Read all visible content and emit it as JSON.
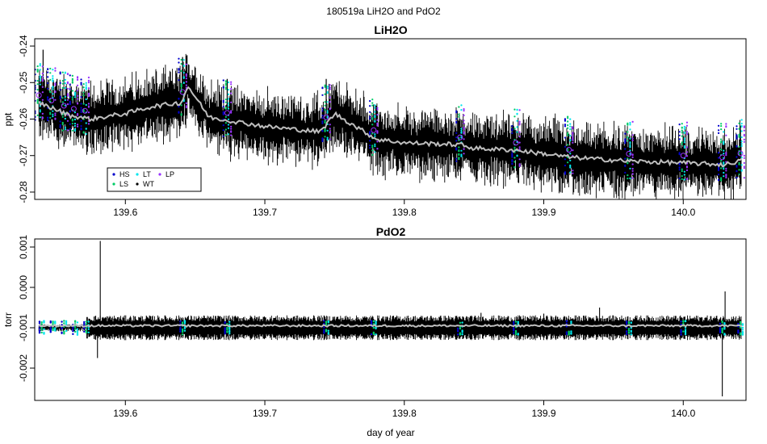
{
  "figure": {
    "suptitle": "180519a   LiH2O and PdO2",
    "shared_xlabel": "day of year"
  },
  "chart_data": [
    {
      "type": "line",
      "title": "LiH2O",
      "xlabel": "",
      "ylabel": "ppt",
      "xlim": [
        139.535,
        140.045
      ],
      "ylim": [
        -0.282,
        -0.238
      ],
      "xticks": [
        139.6,
        139.7,
        139.8,
        139.9,
        140.0
      ],
      "xtick_labels": [
        "139.6",
        "139.7",
        "139.8",
        "139.9",
        "140.0"
      ],
      "yticks": [
        -0.24,
        -0.25,
        -0.26,
        -0.27,
        -0.28
      ],
      "ytick_labels": [
        "-0.24",
        "-0.25",
        "-0.26",
        "-0.27",
        "-0.28"
      ],
      "raw_noise": 0.0065,
      "colors": {
        "raw": "#000000",
        "smooth": "#bebebe",
        "HS": "#0000cc",
        "LS": "#00cc66",
        "LT": "#00e5ee",
        "WT": "#000000",
        "LP": "#9933ff"
      },
      "smooth_trend": {
        "x": [
          139.535,
          139.56,
          139.575,
          139.6,
          139.62,
          139.64,
          139.645,
          139.66,
          139.7,
          139.74,
          139.75,
          139.78,
          139.8,
          139.84,
          139.85,
          139.88,
          139.92,
          139.96,
          140.0,
          140.03,
          140.045
        ],
        "y": [
          -0.255,
          -0.259,
          -0.26,
          -0.2585,
          -0.2565,
          -0.2555,
          -0.251,
          -0.2595,
          -0.262,
          -0.2635,
          -0.2585,
          -0.2655,
          -0.2665,
          -0.267,
          -0.268,
          -0.2685,
          -0.2705,
          -0.2715,
          -0.272,
          -0.2725,
          -0.271
        ]
      },
      "spikes": [
        {
          "x": 139.541,
          "y": -0.241
        },
        {
          "x": 139.551,
          "y": -0.249
        },
        {
          "x": 139.565,
          "y": -0.251
        },
        {
          "x": 139.641,
          "y": -0.243
        },
        {
          "x": 139.673,
          "y": -0.249
        },
        {
          "x": 139.744,
          "y": -0.249
        },
        {
          "x": 139.778,
          "y": -0.256
        },
        {
          "x": 139.84,
          "y": -0.26
        },
        {
          "x": 139.88,
          "y": -0.263
        },
        {
          "x": 139.918,
          "y": -0.264
        },
        {
          "x": 139.961,
          "y": -0.265
        },
        {
          "x": 140.0,
          "y": -0.266
        },
        {
          "x": 140.041,
          "y": -0.264
        }
      ],
      "calibration_bursts": [
        139.538,
        139.547,
        139.556,
        139.563,
        139.571,
        139.641,
        139.673,
        139.744,
        139.778,
        139.84,
        139.88,
        139.918,
        139.961,
        140.0,
        140.028,
        140.041
      ],
      "legend": {
        "placement": "bottom-left",
        "entries": [
          {
            "label": "HS",
            "color": "#0000cc"
          },
          {
            "label": "LT",
            "color": "#00e5ee"
          },
          {
            "label": "LP",
            "color": "#9933ff"
          },
          {
            "label": "LS",
            "color": "#00cc66"
          },
          {
            "label": "WT",
            "color": "#000000"
          }
        ]
      }
    },
    {
      "type": "line",
      "title": "PdO2",
      "xlabel": "day of year",
      "ylabel": "torr",
      "xlim": [
        139.535,
        140.045
      ],
      "ylim": [
        -0.0028,
        0.0012
      ],
      "xticks": [
        139.6,
        139.7,
        139.8,
        139.9,
        140.0
      ],
      "xtick_labels": [
        "139.6",
        "139.7",
        "139.8",
        "139.9",
        "140.0"
      ],
      "yticks": [
        0.001,
        0.0,
        -0.001,
        -0.002
      ],
      "ytick_labels": [
        "0.001",
        "0.000",
        "-0.001",
        "-0.002"
      ],
      "baseline": -0.001,
      "band_halfwidth": 0.00022,
      "colors": {
        "raw": "#000000",
        "smooth": "#bebebe",
        "HS": "#0000cc",
        "LS": "#00cc66",
        "LT": "#00e5ee"
      },
      "spikes": [
        {
          "x": 139.582,
          "y": 0.00115
        },
        {
          "x": 139.58,
          "y": -0.00175
        },
        {
          "x": 140.028,
          "y": -0.0027
        },
        {
          "x": 140.03,
          "y": -0.0001
        },
        {
          "x": 139.94,
          "y": -0.0005
        },
        {
          "x": 139.9,
          "y": -0.00065
        },
        {
          "x": 139.855,
          "y": -0.00063
        }
      ],
      "calibration_bursts": [
        139.54,
        139.548,
        139.556,
        139.564,
        139.572,
        139.641,
        139.673,
        139.744,
        139.778,
        139.84,
        139.88,
        139.918,
        139.961,
        140.0,
        140.028,
        140.041
      ]
    }
  ]
}
